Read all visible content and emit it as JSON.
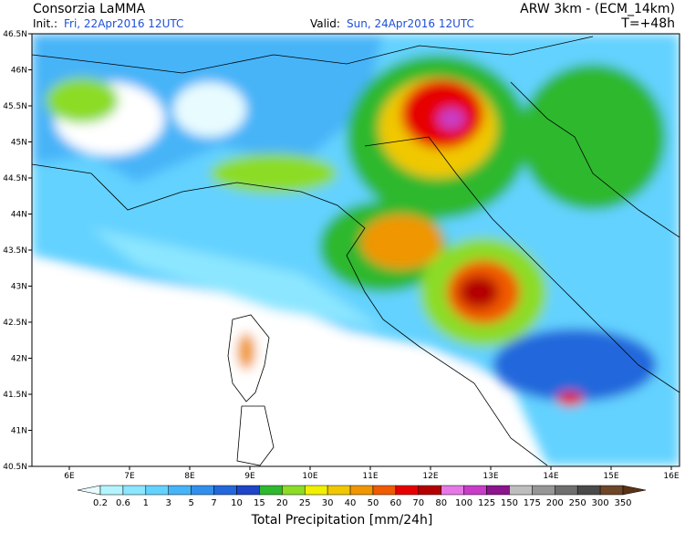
{
  "header": {
    "institution": "Consorzia LaMMA",
    "init_label": "Init.:",
    "init_time": "Fri, 22Apr2016  12UTC",
    "model": "ARW 3km  -  (ECM_14km)",
    "valid_label": "Valid:",
    "valid_time": "Sun, 24Apr2016  12UTC",
    "lead_time": "T=+48h"
  },
  "map": {
    "lon_labels": [
      "6E",
      "7E",
      "8E",
      "9E",
      "10E",
      "11E",
      "12E",
      "13E",
      "14E",
      "15E",
      "16E"
    ],
    "lat_labels": [
      "46.5N",
      "46N",
      "45.5N",
      "45N",
      "44.5N",
      "44N",
      "43.5N",
      "43N",
      "42.5N",
      "42N",
      "41.5N",
      "41N",
      "40.5N"
    ]
  },
  "colorbar": {
    "title": "Total Precipitation [mm/24h]",
    "labels": [
      "0.2",
      "0.6",
      "1",
      "3",
      "5",
      "7",
      "10",
      "15",
      "20",
      "25",
      "30",
      "40",
      "50",
      "60",
      "70",
      "80",
      "100",
      "125",
      "150",
      "175",
      "200",
      "250",
      "300",
      "350"
    ],
    "colors": [
      "#e8fcff",
      "#b4f4ff",
      "#8ce6ff",
      "#64d2ff",
      "#46b4f8",
      "#3290ec",
      "#2268dc",
      "#1e44c8",
      "#2eb82e",
      "#8cdc28",
      "#f0f000",
      "#f0c800",
      "#f09600",
      "#f05a00",
      "#e60000",
      "#b40000",
      "#e678e6",
      "#c83cc8",
      "#8c148c",
      "#bebebe",
      "#969696",
      "#6e6e6e",
      "#4a4a4a",
      "#6e4628",
      "#5a3214"
    ]
  }
}
